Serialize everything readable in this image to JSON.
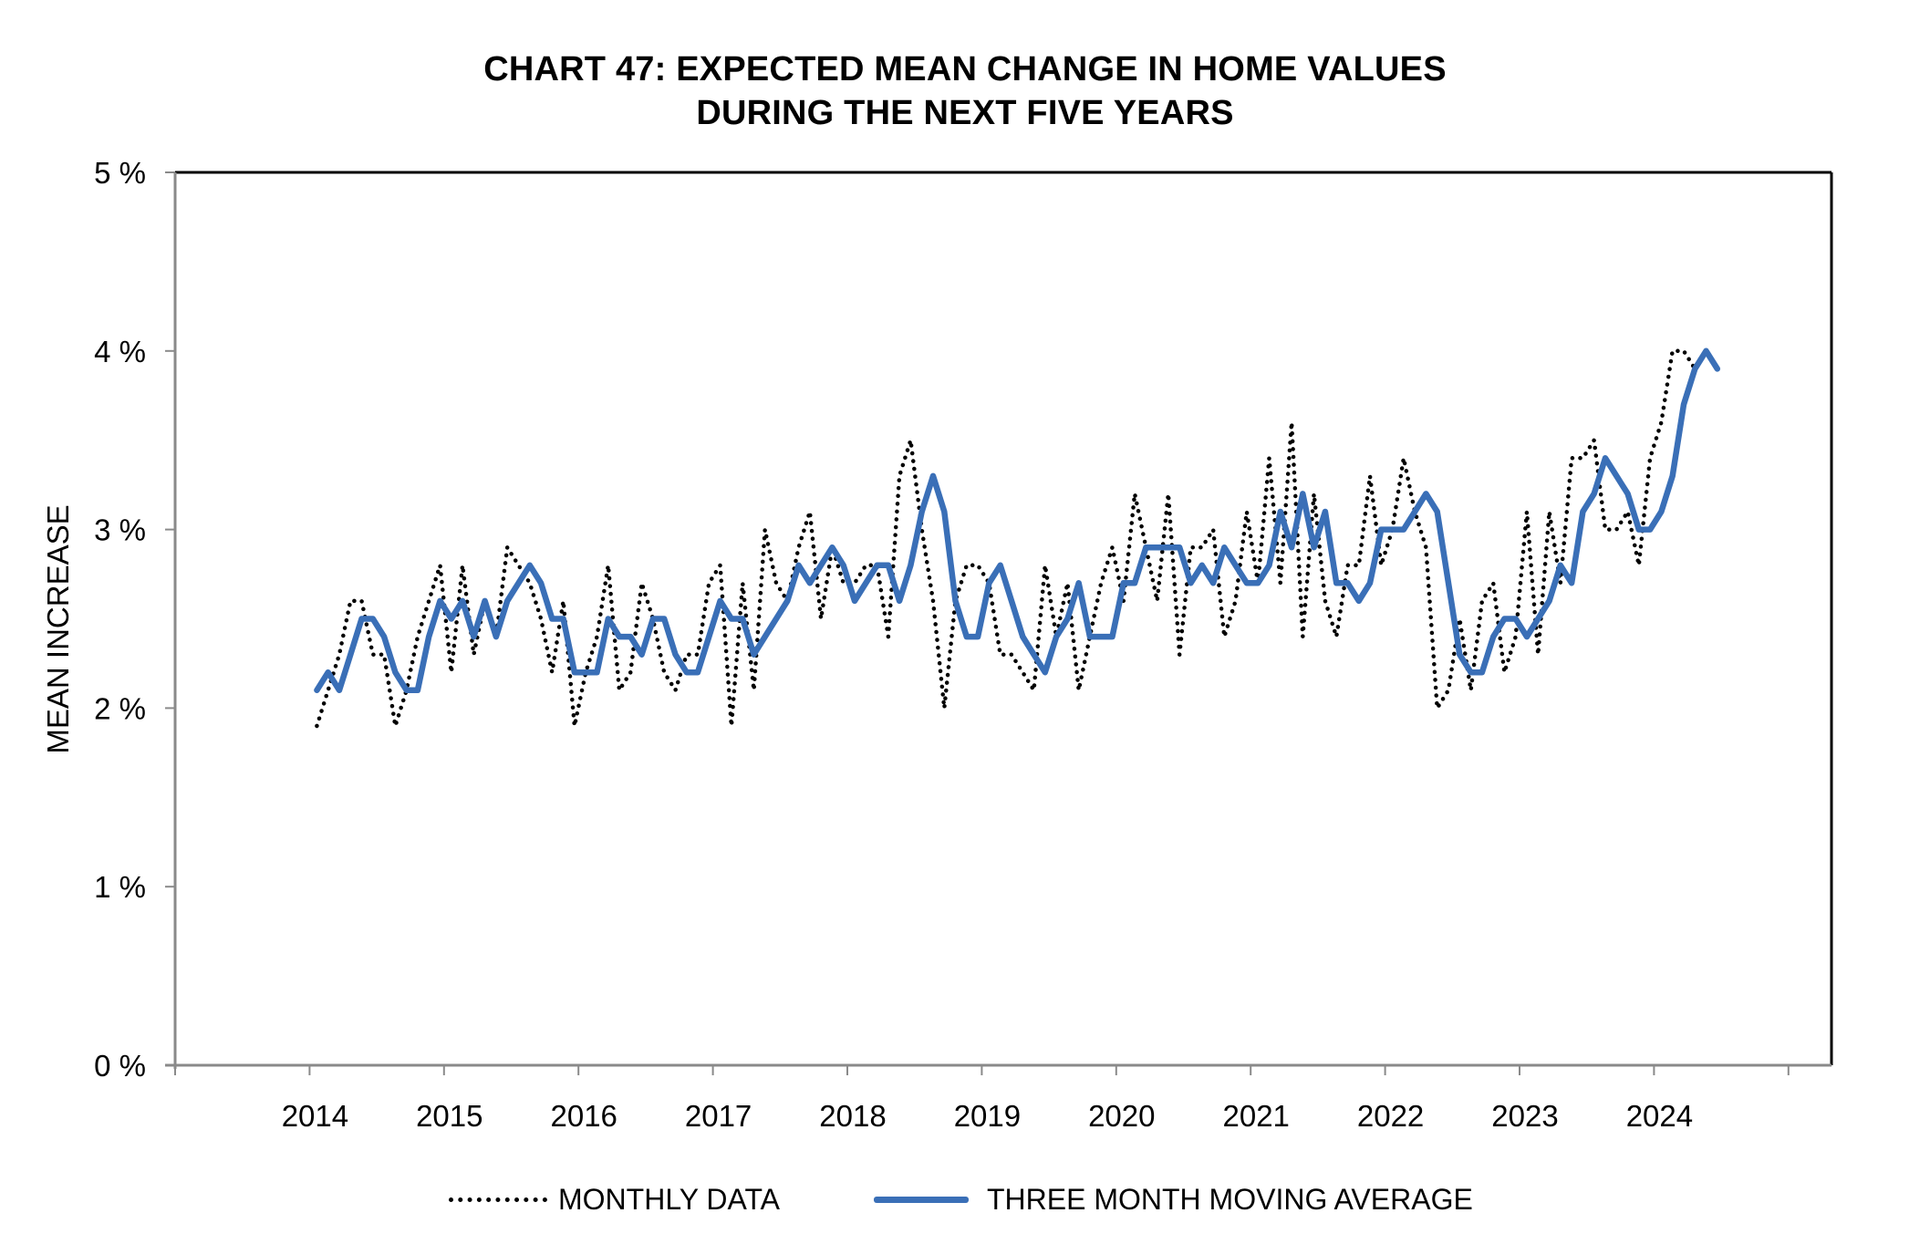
{
  "chart_data": {
    "type": "line",
    "title": "CHART 47: EXPECTED MEAN CHANGE IN HOME VALUES",
    "subtitle": "DURING THE NEXT FIVE YEARS",
    "xlabel": "",
    "ylabel": "MEAN INCREASE",
    "ylim": [
      0,
      5
    ],
    "yticks": [
      "0 %",
      "1 %",
      "2 %",
      "3 %",
      "4 %",
      "5 %"
    ],
    "ytick_values": [
      0,
      1,
      2,
      3,
      4,
      5
    ],
    "xlim": [
      2013,
      2025.5
    ],
    "xticks": [
      "2014",
      "2015",
      "2016",
      "2017",
      "2018",
      "2019",
      "2020",
      "2021",
      "2022",
      "2023",
      "2024"
    ],
    "x_start": "Jan 2014",
    "x_end": "Jun 2024",
    "x_frequency": "monthly",
    "grid": false,
    "legend_position": "bottom",
    "series": [
      {
        "name": "MONTHLY DATA",
        "style": "dotted",
        "color": "#000000",
        "values": [
          1.9,
          2.1,
          2.3,
          2.6,
          2.6,
          2.3,
          2.3,
          1.9,
          2.1,
          2.4,
          2.6,
          2.8,
          2.2,
          2.8,
          2.3,
          2.6,
          2.4,
          2.9,
          2.8,
          2.7,
          2.5,
          2.2,
          2.6,
          1.9,
          2.2,
          2.4,
          2.8,
          2.1,
          2.2,
          2.7,
          2.5,
          2.2,
          2.1,
          2.3,
          2.3,
          2.7,
          2.8,
          1.9,
          2.7,
          2.1,
          3.0,
          2.7,
          2.6,
          2.9,
          3.1,
          2.5,
          2.9,
          2.7,
          2.7,
          2.8,
          2.8,
          2.4,
          3.3,
          3.5,
          3.0,
          2.6,
          2.0,
          2.6,
          2.8,
          2.8,
          2.7,
          2.3,
          2.3,
          2.2,
          2.1,
          2.8,
          2.4,
          2.7,
          2.1,
          2.4,
          2.7,
          2.9,
          2.6,
          3.2,
          2.9,
          2.6,
          3.2,
          2.3,
          2.9,
          2.9,
          3.0,
          2.4,
          2.6,
          3.1,
          2.7,
          3.4,
          2.7,
          3.6,
          2.4,
          3.2,
          2.6,
          2.4,
          2.8,
          2.8,
          3.3,
          2.8,
          3.0,
          3.4,
          3.1,
          2.9,
          2.0,
          2.1,
          2.5,
          2.1,
          2.6,
          2.7,
          2.2,
          2.4,
          3.1,
          2.3,
          3.1,
          2.7,
          3.4,
          3.4,
          3.5,
          3.0,
          3.0,
          3.1,
          2.8,
          3.4,
          3.6,
          4.0,
          4.0,
          3.9,
          4.0,
          3.9
        ]
      },
      {
        "name": "THREE MONTH MOVING AVERAGE",
        "style": "solid",
        "color": "#3A6FB7",
        "values": [
          2.1,
          2.2,
          2.1,
          2.3,
          2.5,
          2.5,
          2.4,
          2.2,
          2.1,
          2.1,
          2.4,
          2.6,
          2.5,
          2.6,
          2.4,
          2.6,
          2.4,
          2.6,
          2.7,
          2.8,
          2.7,
          2.5,
          2.5,
          2.2,
          2.2,
          2.2,
          2.5,
          2.4,
          2.4,
          2.3,
          2.5,
          2.5,
          2.3,
          2.2,
          2.2,
          2.4,
          2.6,
          2.5,
          2.5,
          2.3,
          2.4,
          2.5,
          2.6,
          2.8,
          2.7,
          2.8,
          2.9,
          2.8,
          2.6,
          2.7,
          2.8,
          2.8,
          2.6,
          2.8,
          3.1,
          3.3,
          3.1,
          2.6,
          2.4,
          2.4,
          2.7,
          2.8,
          2.6,
          2.4,
          2.3,
          2.2,
          2.4,
          2.5,
          2.7,
          2.4,
          2.4,
          2.4,
          2.7,
          2.7,
          2.9,
          2.9,
          2.9,
          2.9,
          2.7,
          2.8,
          2.7,
          2.9,
          2.8,
          2.7,
          2.7,
          2.8,
          3.1,
          2.9,
          3.2,
          2.9,
          3.1,
          2.7,
          2.7,
          2.6,
          2.7,
          3.0,
          3.0,
          3.0,
          3.1,
          3.2,
          3.1,
          2.7,
          2.3,
          2.2,
          2.2,
          2.4,
          2.5,
          2.5,
          2.4,
          2.5,
          2.6,
          2.8,
          2.7,
          3.1,
          3.2,
          3.4,
          3.3,
          3.2,
          3.0,
          3.0,
          3.1,
          3.3,
          3.7,
          3.9,
          4.0,
          3.9
        ]
      }
    ]
  },
  "legend": {
    "monthly_label": "MONTHLY DATA",
    "average_label": "THREE MONTH MOVING AVERAGE"
  }
}
